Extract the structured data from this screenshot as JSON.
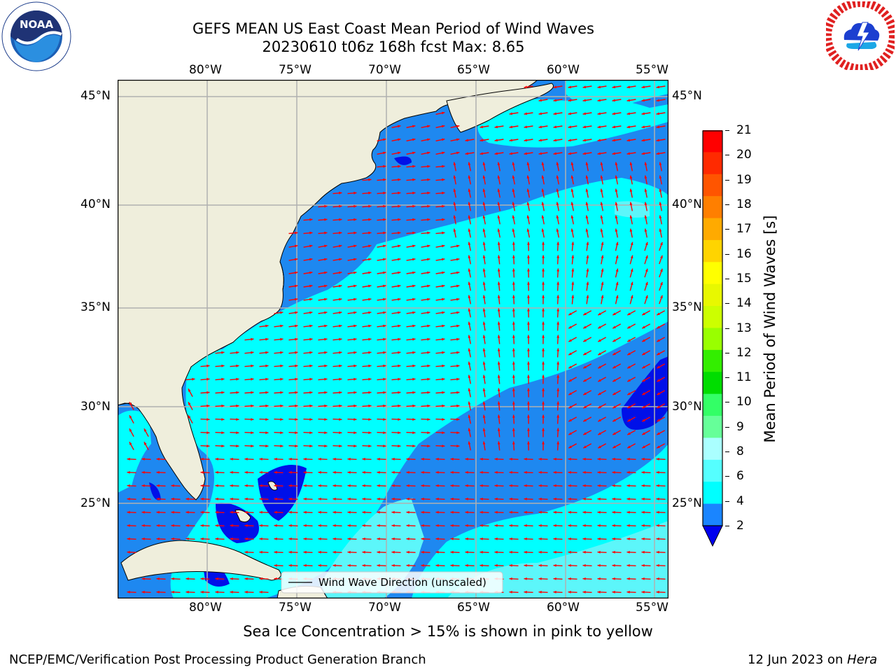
{
  "header": {
    "title_line1": "GEFS MEAN US East Coast Mean Period of Wind Waves",
    "title_line2": "20230610 t06z 168h fcst   Max: 8.65"
  },
  "logos": {
    "left": {
      "text": "NOAA",
      "ring_text": "NATIONAL OCEANIC AND ATMOSPHERIC ADMINISTRATION · U.S. DEPARTMENT OF COMMERCE"
    },
    "right": {
      "ring_text": "NATIONAL WEATHER SERVICE"
    }
  },
  "map": {
    "lon_labels": [
      "80°W",
      "75°W",
      "70°W",
      "65°W",
      "60°W",
      "55°W"
    ],
    "lat_labels": [
      "45°N",
      "40°N",
      "35°N",
      "30°N",
      "25°N"
    ],
    "legend_label": "Wind Wave Direction (unscaled)",
    "colors": {
      "land": "#efeedc",
      "ocean_2_4": "#1e88f0",
      "ocean_4_6": "#00ffff",
      "ocean_6_8": "#5cf6fa",
      "ocean_below_2": "#0010e8",
      "arrow": "#ff0000",
      "grid": "#b0b0b0"
    }
  },
  "colorbar": {
    "label": "Mean Period of Wind Waves [s]",
    "ticks": [
      "21",
      "20",
      "19",
      "18",
      "17",
      "16",
      "15",
      "14",
      "13",
      "12",
      "11",
      "10",
      "9",
      "8",
      "6",
      "4",
      "2"
    ],
    "colors": [
      "#ff0000",
      "#ff2a00",
      "#ff5500",
      "#ff7f00",
      "#ffaa00",
      "#ffd400",
      "#ffff00",
      "#e8f800",
      "#ccff00",
      "#99ff00",
      "#33ee00",
      "#00dd00",
      "#33ff66",
      "#66ff99",
      "#aaffff",
      "#55ffff",
      "#00ffff",
      "#1a85ff"
    ],
    "extend_color": "#0000ee"
  },
  "chart_data": {
    "type": "heatmap",
    "title": "GEFS MEAN US East Coast Mean Period of Wind Waves",
    "subtitle": "20230610 t06z 168h fcst   Max: 8.65",
    "x_range_deg_lon": [
      -85,
      -54.3
    ],
    "y_range_deg_lat": [
      20.6,
      46
    ],
    "colorbar_label": "Mean Period of Wind Waves [s]",
    "colorbar_levels": [
      2,
      4,
      6,
      8,
      9,
      10,
      11,
      12,
      13,
      14,
      15,
      16,
      17,
      18,
      19,
      20,
      21
    ],
    "max_value": 8.65,
    "grid": true,
    "legend": "Wind Wave Direction (unscaled)",
    "legend_position": "bottom-center"
  },
  "footer": {
    "note": "Sea Ice Concentration > 15% is shown in pink to yellow",
    "left": "NCEP/EMC/Verification Post Processing Product Generation Branch",
    "right_date": "12 Jun 2023 on ",
    "right_host": "Hera"
  }
}
